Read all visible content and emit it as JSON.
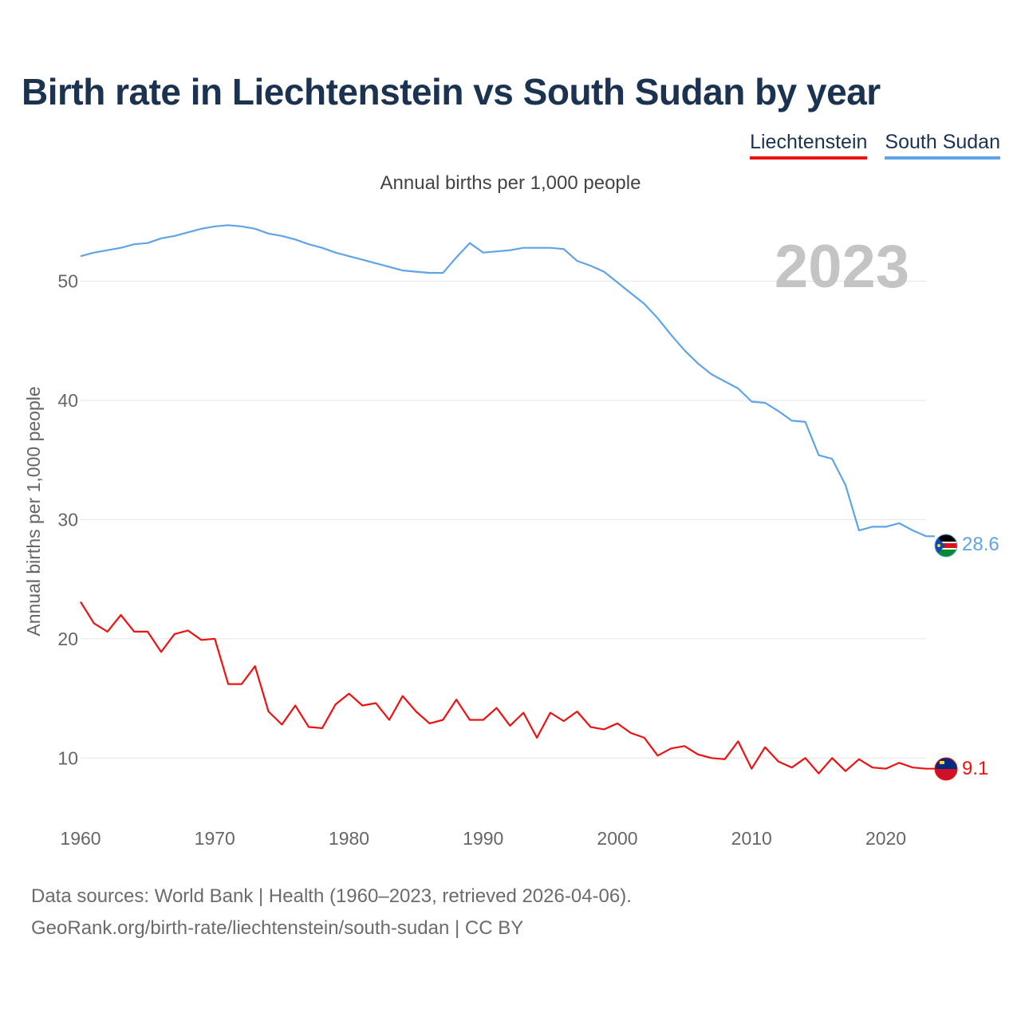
{
  "chart_data": {
    "type": "line",
    "title": "Birth rate in Liechtenstein vs South Sudan by year",
    "subtitle": "Annual births per 1,000 people",
    "ylabel": "Annual births per 1,000 people",
    "xlabel": "",
    "xlim": [
      1960,
      2023
    ],
    "ylim": [
      5,
      58
    ],
    "yticks": [
      10,
      20,
      30,
      40,
      50
    ],
    "xticks": [
      1960,
      1970,
      1980,
      1990,
      2000,
      2010,
      2020
    ],
    "year_label": "2023",
    "grid": true,
    "legend_position": "top-right",
    "x": [
      1960,
      1961,
      1962,
      1963,
      1964,
      1965,
      1966,
      1967,
      1968,
      1969,
      1970,
      1971,
      1972,
      1973,
      1974,
      1975,
      1976,
      1977,
      1978,
      1979,
      1980,
      1981,
      1982,
      1983,
      1984,
      1985,
      1986,
      1987,
      1988,
      1989,
      1990,
      1991,
      1992,
      1993,
      1994,
      1995,
      1996,
      1997,
      1998,
      1999,
      2000,
      2001,
      2002,
      2003,
      2004,
      2005,
      2006,
      2007,
      2008,
      2009,
      2010,
      2011,
      2012,
      2013,
      2014,
      2015,
      2016,
      2017,
      2018,
      2019,
      2020,
      2021,
      2022,
      2023
    ],
    "series": [
      {
        "name": "Liechtenstein",
        "color": "#ee1111",
        "end_label": "9.1",
        "values": [
          23.1,
          21.3,
          20.6,
          22.0,
          20.6,
          20.6,
          18.9,
          20.4,
          20.7,
          19.9,
          20.0,
          16.2,
          16.2,
          17.7,
          13.9,
          12.8,
          14.4,
          12.6,
          12.5,
          14.5,
          15.4,
          14.4,
          14.6,
          13.2,
          15.2,
          13.9,
          12.9,
          13.2,
          14.9,
          13.2,
          13.2,
          14.2,
          12.7,
          13.8,
          11.7,
          13.8,
          13.1,
          13.9,
          12.6,
          12.4,
          12.9,
          12.1,
          11.7,
          10.2,
          10.8,
          11.0,
          10.3,
          10.0,
          9.9,
          11.4,
          9.1,
          10.9,
          9.7,
          9.2,
          10.0,
          8.7,
          10.0,
          8.9,
          9.9,
          9.2,
          9.1,
          9.6,
          9.2,
          9.1
        ]
      },
      {
        "name": "South Sudan",
        "color": "#5fa4e6",
        "end_label": "28.6",
        "values": [
          52.1,
          52.4,
          52.6,
          52.8,
          53.1,
          53.2,
          53.6,
          53.8,
          54.1,
          54.4,
          54.6,
          54.7,
          54.6,
          54.4,
          54.0,
          53.8,
          53.5,
          53.1,
          52.8,
          52.4,
          52.1,
          51.8,
          51.5,
          51.2,
          50.9,
          50.8,
          50.7,
          50.7,
          52.0,
          53.2,
          52.4,
          52.5,
          52.6,
          52.8,
          52.8,
          52.8,
          52.7,
          51.7,
          51.3,
          50.8,
          49.9,
          49.0,
          48.1,
          46.9,
          45.5,
          44.2,
          43.1,
          42.2,
          41.6,
          41.0,
          39.9,
          39.8,
          39.1,
          38.3,
          38.2,
          35.4,
          35.1,
          32.9,
          29.1,
          29.4,
          29.4,
          29.7,
          29.1,
          28.6
        ]
      }
    ]
  },
  "footer": {
    "sources": "Data sources: World Bank | Health (1960–2023, retrieved 2026-04-06).",
    "link": "GeoRank.org/birth-rate/liechtenstein/south-sudan | CC BY"
  },
  "flag_icons": [
    "liechtenstein-flag-icon",
    "south-sudan-flag-icon"
  ]
}
